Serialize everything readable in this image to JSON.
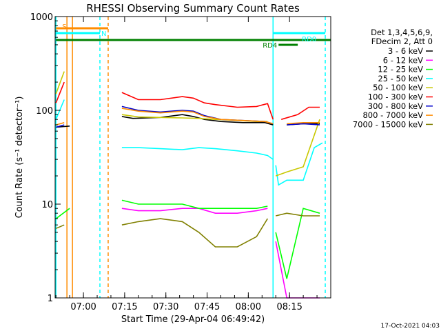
{
  "chart_data": {
    "type": "line",
    "title": "RHESSI Observing Summary Count Rates",
    "xlabel": "Start Time (29-Apr-04 06:49:42)",
    "ylabel": "Count Rate (s⁻¹ detector⁻¹)",
    "y_scale": "log",
    "ylim": [
      1,
      1000
    ],
    "xlim": [
      "06:49:42",
      "08:30:00"
    ],
    "x_ticks": [
      "07:00",
      "07:15",
      "07:30",
      "07:45",
      "08:00",
      "08:15"
    ],
    "y_ticks": [
      "1",
      "10",
      "100",
      "1000"
    ],
    "legend_header": [
      "Det 1,3,4,5,6,9,",
      "FDecim 2, Att 0"
    ],
    "legend_position": "right",
    "grid": false,
    "timestamp": "17-Oct-2021 04:03",
    "segments": [
      [
        "06:50",
        "06:55"
      ],
      [
        "07:14",
        "08:09"
      ],
      [
        "08:09",
        "08:30"
      ]
    ],
    "series": [
      {
        "name": "3 - 6 keV",
        "color": "#000000",
        "x": [
          "06:50",
          "06:55",
          "07:14",
          "07:18",
          "07:28",
          "07:36",
          "07:40",
          "07:44",
          "07:50",
          "07:58",
          "08:06",
          "08:09",
          "08:14",
          "08:20",
          "08:26"
        ],
        "y": [
          66,
          68,
          86,
          82,
          84,
          90,
          86,
          80,
          76,
          74,
          74,
          70,
          70,
          72,
          72
        ]
      },
      {
        "name": "6 - 12 keV",
        "color": "#ff00ff",
        "x": [
          "07:14",
          "07:20",
          "07:28",
          "07:36",
          "07:42",
          "07:48",
          "07:56",
          "08:03",
          "08:07",
          "08:10",
          "08:14",
          "08:20",
          "08:26"
        ],
        "y": [
          9,
          8.5,
          8.5,
          9,
          9,
          8,
          8,
          8.5,
          9,
          4,
          1,
          1,
          1
        ]
      },
      {
        "name": "12 - 25 keV",
        "color": "#00ff00",
        "x": [
          "06:50",
          "06:55",
          "07:14",
          "07:20",
          "07:28",
          "07:36",
          "07:42",
          "07:48",
          "07:56",
          "08:03",
          "08:07",
          "08:10",
          "08:14",
          "08:20",
          "08:26"
        ],
        "y": [
          7,
          9,
          11,
          10,
          10,
          10,
          9,
          9,
          9,
          9,
          9.5,
          5,
          1.6,
          9,
          8
        ]
      },
      {
        "name": "25 - 50 keV",
        "color": "#00ffff",
        "x": [
          "06:50",
          "06:53",
          "07:14",
          "07:20",
          "07:28",
          "07:36",
          "07:42",
          "07:48",
          "07:56",
          "08:03",
          "08:07",
          "08:09",
          "08:10",
          "08:11",
          "08:14",
          "08:20",
          "08:24",
          "08:27"
        ],
        "y": [
          80,
          130,
          40,
          40,
          39,
          38,
          40,
          39,
          37,
          35,
          33,
          30,
          26,
          16,
          18,
          18,
          40,
          45
        ]
      },
      {
        "name": "50 - 100 keV",
        "color": "#c8c800",
        "x": [
          "06:50",
          "06:53",
          "07:14",
          "07:20",
          "07:28",
          "07:36",
          "07:42",
          "07:48",
          "07:56",
          "08:03",
          "08:07",
          "08:10",
          "08:14",
          "08:20",
          "08:26"
        ],
        "y": [
          150,
          260,
          90,
          85,
          84,
          83,
          82,
          80,
          78,
          76,
          76,
          20,
          22,
          25,
          80
        ]
      },
      {
        "name": "100 - 300 keV",
        "color": "#ff0000",
        "x": [
          "06:50",
          "06:53",
          "07:14",
          "07:20",
          "07:28",
          "07:36",
          "07:40",
          "07:44",
          "07:48",
          "07:56",
          "08:03",
          "08:07",
          "08:09",
          "08:12",
          "08:18",
          "08:22",
          "08:26"
        ],
        "y": [
          120,
          200,
          155,
          130,
          130,
          140,
          135,
          120,
          115,
          108,
          110,
          118,
          80,
          80,
          90,
          108,
          108
        ]
      },
      {
        "name": "300 - 800 keV",
        "color": "#0000cc",
        "x": [
          "06:50",
          "06:53",
          "07:14",
          "07:20",
          "07:28",
          "07:36",
          "07:40",
          "07:44",
          "07:50",
          "07:58",
          "08:06",
          "08:09",
          "08:14",
          "08:20",
          "08:26"
        ],
        "y": [
          66,
          70,
          110,
          100,
          96,
          100,
          98,
          88,
          80,
          78,
          76,
          72,
          70,
          72,
          70
        ]
      },
      {
        "name": "800 - 7000 keV",
        "color": "#ff8c00",
        "x": [
          "06:50",
          "06:53",
          "07:14",
          "07:20",
          "07:28",
          "07:36",
          "07:40",
          "07:44",
          "07:50",
          "07:58",
          "08:06",
          "08:09",
          "08:14",
          "08:20",
          "08:26"
        ],
        "y": [
          70,
          74,
          105,
          98,
          94,
          98,
          96,
          86,
          80,
          78,
          76,
          72,
          72,
          74,
          74
        ]
      },
      {
        "name": "7000 - 15000 keV",
        "color": "#808000",
        "x": [
          "06:50",
          "06:53",
          "07:14",
          "07:20",
          "07:28",
          "07:36",
          "07:42",
          "07:48",
          "07:56",
          "08:03",
          "08:07",
          "08:10",
          "08:14",
          "08:20",
          "08:26"
        ],
        "y": [
          5.5,
          6,
          6,
          6.5,
          7,
          6.5,
          5,
          3.5,
          3.5,
          4.5,
          7,
          7.5,
          8,
          7.5,
          7.5
        ]
      }
    ],
    "flag_bars": [
      {
        "label": "S",
        "color": "#ff8c00",
        "start": "06:50",
        "end": "07:09",
        "level": 1
      },
      {
        "label": "N",
        "color": "#00ffff",
        "start": "06:50",
        "end": "07:06",
        "level": 2
      },
      {
        "label": "",
        "color": "#008000",
        "start": "06:50",
        "end": "08:30",
        "level": 3
      },
      {
        "label": "RD0",
        "color": "#00ffff",
        "start": "08:09",
        "end": "08:28",
        "level": 2
      },
      {
        "label": "RD4",
        "color": "#008000",
        "start": "08:11",
        "end": "08:18",
        "level": 4
      }
    ],
    "vertical_lines": [
      {
        "time": "06:50",
        "color": "#00ffff",
        "style": "solid"
      },
      {
        "time": "06:54",
        "color": "#ff8c00",
        "style": "solid"
      },
      {
        "time": "06:56",
        "color": "#ff8c00",
        "style": "solid"
      },
      {
        "time": "07:06",
        "color": "#00ffff",
        "style": "dashed"
      },
      {
        "time": "07:09",
        "color": "#ff8c00",
        "style": "dashed"
      },
      {
        "time": "08:09",
        "color": "#00ffff",
        "style": "solid"
      },
      {
        "time": "08:28",
        "color": "#00ffff",
        "style": "dashed"
      }
    ]
  }
}
